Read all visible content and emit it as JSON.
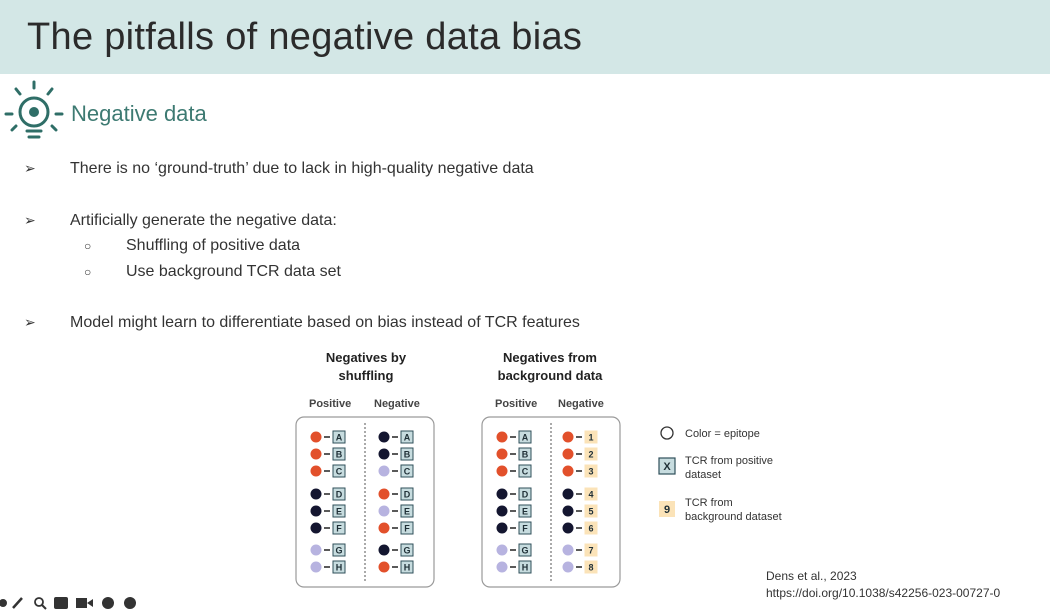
{
  "slide": {
    "title": "The pitfalls of negative data bias",
    "section": "Negative data",
    "bullets": [
      "There is no ‘ground-truth’ due to lack in high-quality negative data",
      "Artificially generate the negative data:",
      "Model might learn to differentiate based on bias instead of TCR features"
    ],
    "sub_bullets": [
      "Shuffling of positive data",
      "Use background TCR data set"
    ],
    "bullet_marker": "➢",
    "sub_marker": "○"
  },
  "figure": {
    "panel_shuffle": {
      "title_line1": "Negatives by",
      "title_line2": "shuffling",
      "col_positive": "Positive",
      "col_negative": "Negative",
      "positive": [
        {
          "color": "orange",
          "label": "A"
        },
        {
          "color": "orange",
          "label": "B"
        },
        {
          "color": "orange",
          "label": "C"
        },
        {
          "color": "navy",
          "label": "D"
        },
        {
          "color": "navy",
          "label": "E"
        },
        {
          "color": "navy",
          "label": "F"
        },
        {
          "color": "lavender",
          "label": "G"
        },
        {
          "color": "lavender",
          "label": "H"
        }
      ],
      "negative": [
        {
          "color": "navy",
          "label": "A"
        },
        {
          "color": "navy",
          "label": "B"
        },
        {
          "color": "lavender",
          "label": "C"
        },
        {
          "color": "orange",
          "label": "D"
        },
        {
          "color": "lavender",
          "label": "E"
        },
        {
          "color": "orange",
          "label": "F"
        },
        {
          "color": "navy",
          "label": "G"
        },
        {
          "color": "orange",
          "label": "H"
        }
      ]
    },
    "panel_background": {
      "title_line1": "Negatives from",
      "title_line2": "background data",
      "col_positive": "Positive",
      "col_negative": "Negative",
      "positive": [
        {
          "color": "orange",
          "label": "A"
        },
        {
          "color": "orange",
          "label": "B"
        },
        {
          "color": "orange",
          "label": "C"
        },
        {
          "color": "navy",
          "label": "D"
        },
        {
          "color": "navy",
          "label": "E"
        },
        {
          "color": "navy",
          "label": "F"
        },
        {
          "color": "lavender",
          "label": "G"
        },
        {
          "color": "lavender",
          "label": "H"
        }
      ],
      "negative": [
        {
          "color": "orange",
          "label": "1"
        },
        {
          "color": "orange",
          "label": "2"
        },
        {
          "color": "orange",
          "label": "3"
        },
        {
          "color": "navy",
          "label": "4"
        },
        {
          "color": "navy",
          "label": "5"
        },
        {
          "color": "navy",
          "label": "6"
        },
        {
          "color": "lavender",
          "label": "7"
        },
        {
          "color": "lavender",
          "label": "8"
        }
      ]
    },
    "legend": {
      "color_epitope": "Color = epitope",
      "positive_box_label": "X",
      "positive_line1": "TCR from positive",
      "positive_line2": "dataset",
      "background_box_label": "9",
      "background_line1": "TCR from",
      "background_line2": "background dataset"
    },
    "colors": {
      "orange": "#e2502b",
      "navy": "#141630",
      "lavender": "#b7b3e0",
      "pos_box_fill": "#c7dcdf",
      "pos_box_stroke": "#2f4f5a",
      "bg_box_fill": "#fbe3b8"
    }
  },
  "reference": {
    "line1": "Dens et al., 2023",
    "line2": "https://doi.org/10.1038/s42256-023-00727-0"
  },
  "toolbar": {
    "icons": [
      "pen-icon",
      "pencil-icon",
      "magnifier-icon",
      "captions-icon",
      "camera-icon",
      "more-icon",
      "forward-icon"
    ]
  }
}
